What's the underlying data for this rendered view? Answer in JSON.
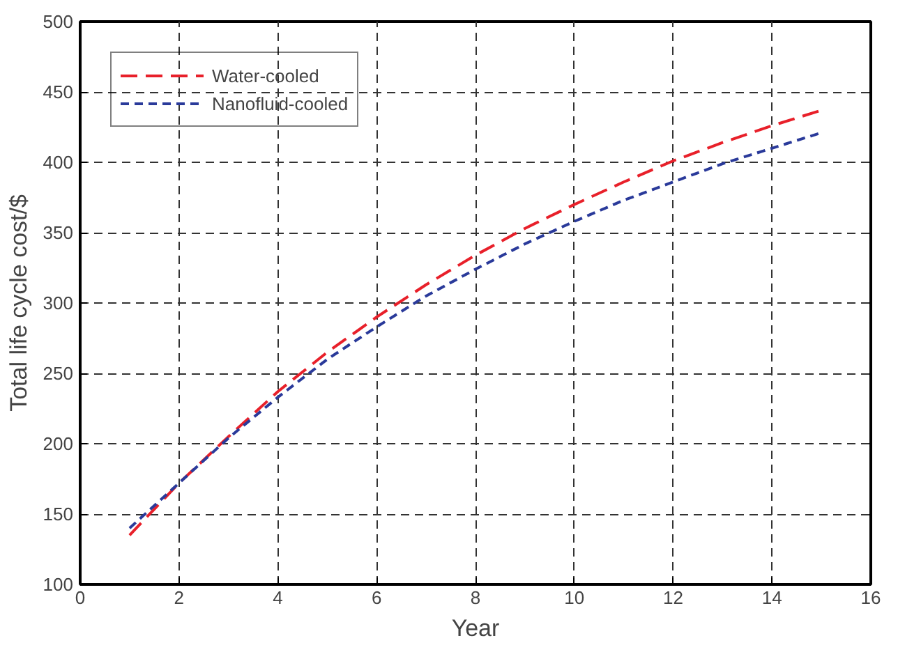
{
  "chart_data": {
    "type": "line",
    "xlabel": "Year",
    "ylabel": "Total life cycle cost/$",
    "x": [
      1,
      2,
      3,
      4,
      5,
      6,
      7,
      8,
      9,
      10,
      11,
      12,
      13,
      14,
      15
    ],
    "series": [
      {
        "name": "Water-cooled",
        "color": "#e8202a",
        "line_style": "dashed",
        "values": [
          135,
          172,
          205,
          237,
          265,
          290,
          313,
          334,
          353,
          370,
          386,
          401,
          414,
          426,
          437
        ]
      },
      {
        "name": "Nanofluid-cooled",
        "color": "#2a3a9a",
        "line_style": "dotted",
        "values": [
          140,
          172,
          204,
          233,
          260,
          283,
          305,
          324,
          342,
          358,
          373,
          386,
          399,
          410,
          421
        ]
      }
    ],
    "xlim": [
      0,
      16
    ],
    "xticks": [
      0,
      2,
      4,
      6,
      8,
      10,
      12,
      14,
      16
    ],
    "ylim": [
      100,
      500
    ],
    "yticks": [
      100,
      150,
      200,
      250,
      300,
      350,
      400,
      450,
      500
    ],
    "grid": true,
    "legend": "top left",
    "marker": "none"
  }
}
